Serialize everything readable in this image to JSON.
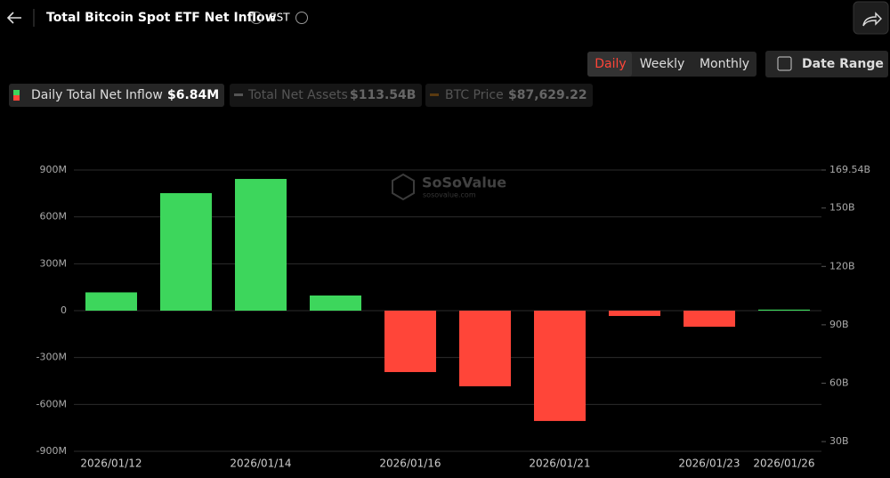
{
  "header": {
    "title": "Total Bitcoin Spot ETF Net Inflow",
    "timezone": "EST"
  },
  "controls": {
    "tabs": [
      "Daily",
      "Weekly",
      "Monthly"
    ],
    "date_range": "Date Range"
  },
  "legend": [
    {
      "name": "Daily Total Net Inflow",
      "value": "$6.84M"
    },
    {
      "name": "Total Net Assets",
      "value": "$113.54B"
    },
    {
      "name": "BTC Price",
      "value": "$87,629.22"
    }
  ],
  "watermark": {
    "brand": "SoSoValue",
    "site": "sosovalue.com"
  },
  "chart_data": {
    "type": "bar",
    "categories": [
      "2026/01/12",
      null,
      "2026/01/14",
      null,
      "2026/01/16",
      null,
      "2026/01/21",
      null,
      "2026/01/23",
      "2026/01/26"
    ],
    "values": [
      117,
      752,
      843,
      97,
      -393,
      -484,
      -706,
      -34,
      -103,
      6.84
    ],
    "positive_color": "#3dd65c",
    "negative_color": "#ff4539",
    "ylim": [
      -900,
      900
    ],
    "yticks": [
      {
        "value": -900,
        "label": "-900M"
      },
      {
        "value": -600,
        "label": "-600M"
      },
      {
        "value": -300,
        "label": "-300M"
      },
      0,
      {
        "value": 300,
        "label": "300M"
      },
      {
        "value": 600,
        "label": "600M"
      },
      {
        "value": 900,
        "label": "900M"
      }
    ],
    "y2lim": [
      25,
      169.54
    ],
    "y2ticks": [
      {
        "value": 30,
        "label": "30B"
      },
      {
        "value": 60,
        "label": "60B"
      },
      {
        "value": 90,
        "label": "90B"
      },
      {
        "value": 120,
        "label": "120B"
      },
      {
        "value": 150,
        "label": "150B"
      },
      {
        "value": 169.54,
        "label": "169.54B"
      }
    ],
    "grid": true
  }
}
